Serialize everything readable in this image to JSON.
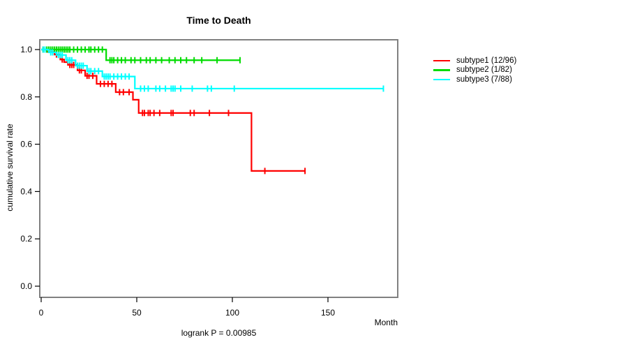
{
  "colors": {
    "background": "#ffffff",
    "box": "#808080",
    "axis": "#000000",
    "subtype1": "#ff0000",
    "subtype2": "#00dc00",
    "subtype3": "#00ffff"
  },
  "chart_data": {
    "type": "line",
    "subtype": "kaplan-meier-step-curves",
    "title": "Time to Death",
    "xlabel": "Month",
    "ylabel": "cumulative survival rate",
    "annotation": "logrank P = 0.00985",
    "xlim": [
      0,
      186
    ],
    "ylim": [
      0,
      1.0
    ],
    "x_ticks": [
      0,
      50,
      100,
      150
    ],
    "y_ticks": [
      0.0,
      0.2,
      0.4,
      0.6,
      0.8,
      1.0
    ],
    "y_tick_labels": [
      "0.0",
      "0.2",
      "0.4",
      "0.6",
      "0.8",
      "1.0"
    ],
    "grid": false,
    "legend_position": "right-outside",
    "series": [
      {
        "id": "subtype1",
        "name": "subtype1 (12/96)",
        "color": "#ff0000",
        "start": [
          0,
          1.0
        ],
        "drops": [
          [
            3,
            0.99
          ],
          [
            7,
            0.979
          ],
          [
            10,
            0.958
          ],
          [
            12,
            0.947
          ],
          [
            14,
            0.935
          ],
          [
            19,
            0.912
          ],
          [
            23,
            0.889
          ],
          [
            29,
            0.855
          ],
          [
            39,
            0.82
          ],
          [
            48,
            0.788
          ],
          [
            51,
            0.732
          ],
          [
            110,
            0.487
          ]
        ],
        "end_month": 138,
        "censors": [
          [
            1,
            1.0
          ],
          [
            8,
            0.979
          ],
          [
            11,
            0.958
          ],
          [
            15,
            0.935
          ],
          [
            16,
            0.935
          ],
          [
            17,
            0.935
          ],
          [
            20,
            0.912
          ],
          [
            21,
            0.912
          ],
          [
            24,
            0.889
          ],
          [
            25,
            0.889
          ],
          [
            27,
            0.889
          ],
          [
            31,
            0.855
          ],
          [
            33,
            0.855
          ],
          [
            35,
            0.855
          ],
          [
            37,
            0.855
          ],
          [
            41,
            0.82
          ],
          [
            43,
            0.82
          ],
          [
            46,
            0.82
          ],
          [
            53,
            0.732
          ],
          [
            54,
            0.732
          ],
          [
            56,
            0.732
          ],
          [
            57,
            0.732
          ],
          [
            59,
            0.732
          ],
          [
            62,
            0.732
          ],
          [
            68,
            0.732
          ],
          [
            69,
            0.732
          ],
          [
            78,
            0.732
          ],
          [
            80,
            0.732
          ],
          [
            88,
            0.732
          ],
          [
            98,
            0.732
          ],
          [
            117,
            0.487
          ],
          [
            138,
            0.487
          ]
        ]
      },
      {
        "id": "subtype2",
        "name": "subtype2 (1/82)",
        "color": "#00dc00",
        "start": [
          0,
          1.0
        ],
        "drops": [
          [
            34,
            0.955
          ]
        ],
        "end_month": 104,
        "censors": [
          [
            1,
            1.0
          ],
          [
            2,
            1.0
          ],
          [
            3,
            1.0
          ],
          [
            4,
            1.0
          ],
          [
            5,
            1.0
          ],
          [
            6,
            1.0
          ],
          [
            7,
            1.0
          ],
          [
            8,
            1.0
          ],
          [
            9,
            1.0
          ],
          [
            10,
            1.0
          ],
          [
            11,
            1.0
          ],
          [
            12,
            1.0
          ],
          [
            13,
            1.0
          ],
          [
            14,
            1.0
          ],
          [
            15,
            1.0
          ],
          [
            17,
            1.0
          ],
          [
            19,
            1.0
          ],
          [
            21,
            1.0
          ],
          [
            23,
            1.0
          ],
          [
            25,
            1.0
          ],
          [
            26,
            1.0
          ],
          [
            28,
            1.0
          ],
          [
            30,
            1.0
          ],
          [
            32,
            1.0
          ],
          [
            36,
            0.955
          ],
          [
            37,
            0.955
          ],
          [
            38,
            0.955
          ],
          [
            40,
            0.955
          ],
          [
            42,
            0.955
          ],
          [
            44,
            0.955
          ],
          [
            47,
            0.955
          ],
          [
            49,
            0.955
          ],
          [
            52,
            0.955
          ],
          [
            55,
            0.955
          ],
          [
            57,
            0.955
          ],
          [
            60,
            0.955
          ],
          [
            63,
            0.955
          ],
          [
            67,
            0.955
          ],
          [
            70,
            0.955
          ],
          [
            73,
            0.955
          ],
          [
            76,
            0.955
          ],
          [
            80,
            0.955
          ],
          [
            84,
            0.955
          ],
          [
            92,
            0.955
          ],
          [
            104,
            0.955
          ]
        ]
      },
      {
        "id": "subtype3",
        "name": "subtype3 (7/88)",
        "color": "#00ffff",
        "start": [
          0,
          1.0
        ],
        "drops": [
          [
            4,
            0.988
          ],
          [
            8,
            0.977
          ],
          [
            13,
            0.955
          ],
          [
            18,
            0.932
          ],
          [
            24,
            0.909
          ],
          [
            32,
            0.886
          ],
          [
            49,
            0.835
          ]
        ],
        "end_month": 179,
        "censors": [
          [
            1,
            1.0
          ],
          [
            2,
            1.0
          ],
          [
            5,
            0.988
          ],
          [
            6,
            0.988
          ],
          [
            9,
            0.977
          ],
          [
            10,
            0.977
          ],
          [
            11,
            0.977
          ],
          [
            14,
            0.955
          ],
          [
            15,
            0.955
          ],
          [
            16,
            0.955
          ],
          [
            19,
            0.932
          ],
          [
            20,
            0.932
          ],
          [
            21,
            0.932
          ],
          [
            22,
            0.932
          ],
          [
            25,
            0.909
          ],
          [
            26,
            0.909
          ],
          [
            28,
            0.909
          ],
          [
            30,
            0.909
          ],
          [
            33,
            0.886
          ],
          [
            34,
            0.886
          ],
          [
            35,
            0.886
          ],
          [
            36,
            0.886
          ],
          [
            38,
            0.886
          ],
          [
            40,
            0.886
          ],
          [
            42,
            0.886
          ],
          [
            44,
            0.886
          ],
          [
            46,
            0.886
          ],
          [
            52,
            0.835
          ],
          [
            54,
            0.835
          ],
          [
            56,
            0.835
          ],
          [
            60,
            0.835
          ],
          [
            62,
            0.835
          ],
          [
            65,
            0.835
          ],
          [
            68,
            0.835
          ],
          [
            69,
            0.835
          ],
          [
            70,
            0.835
          ],
          [
            73,
            0.835
          ],
          [
            79,
            0.835
          ],
          [
            87,
            0.835
          ],
          [
            89,
            0.835
          ],
          [
            101,
            0.835
          ],
          [
            179,
            0.835
          ]
        ]
      }
    ]
  }
}
